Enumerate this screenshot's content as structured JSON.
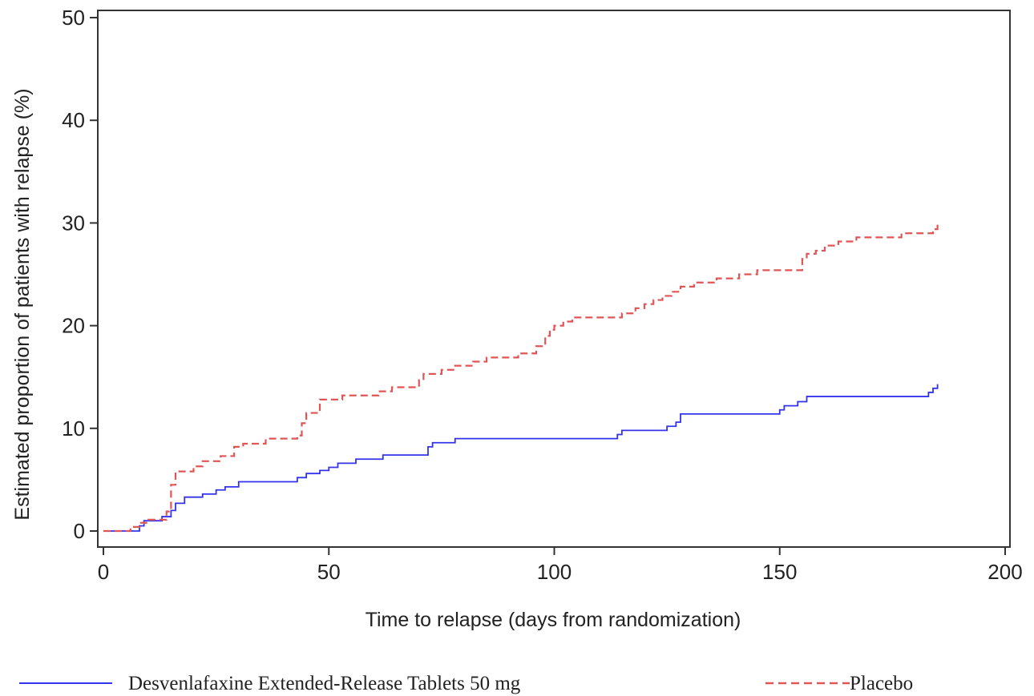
{
  "chart_data": {
    "type": "line",
    "title": "",
    "xlabel": "Time to relapse (days from randomization)",
    "ylabel": "Estimated proportion of patients with relapse (%)",
    "xlim": [
      0,
      200
    ],
    "ylim": [
      0,
      50
    ],
    "xticks": [
      0,
      50,
      100,
      150,
      200
    ],
    "yticks": [
      0,
      10,
      20,
      30,
      40,
      50
    ],
    "xtick_labels": [
      "0",
      "50",
      "100",
      "150",
      "200"
    ],
    "ytick_labels": [
      "0",
      "10",
      "20",
      "30",
      "40",
      "50"
    ],
    "grid": false,
    "step": true,
    "legend_position": "bottom",
    "series": [
      {
        "name": "Desvenlafaxine Extended-Release Tablets 50 mg",
        "color": "#3333ee",
        "dash": "solid",
        "x": [
          0,
          8,
          9,
          13,
          15,
          16,
          18,
          22,
          25,
          27,
          30,
          43,
          45,
          48,
          50,
          52,
          56,
          62,
          72,
          73,
          78,
          114,
          115,
          125,
          127,
          128,
          150,
          151,
          154,
          156,
          183,
          184,
          185
        ],
        "y": [
          0,
          0.5,
          1.0,
          1.4,
          2.0,
          2.7,
          3.3,
          3.6,
          4.0,
          4.3,
          4.8,
          5.2,
          5.6,
          5.9,
          6.2,
          6.6,
          7.0,
          7.4,
          8.2,
          8.6,
          9.0,
          9.4,
          9.8,
          10.2,
          10.6,
          11.4,
          11.8,
          12.2,
          12.6,
          13.1,
          13.5,
          13.9,
          14.3
        ]
      },
      {
        "name": "Placebo",
        "color": "#e05555",
        "dash": "dashed",
        "x": [
          0,
          6,
          8,
          10,
          14,
          15,
          16,
          20,
          22,
          26,
          29,
          31,
          36,
          43,
          44,
          45,
          48,
          53,
          61,
          64,
          70,
          71,
          75,
          78,
          82,
          85,
          92,
          96,
          98,
          99,
          100,
          102,
          104,
          107,
          115,
          118,
          120,
          122,
          124,
          126,
          128,
          131,
          136,
          141,
          145,
          155,
          156,
          158,
          160,
          163,
          167,
          175,
          177,
          181,
          184,
          185
        ],
        "y": [
          0,
          0.4,
          0.8,
          1.1,
          1.9,
          4.5,
          5.8,
          6.3,
          6.8,
          7.3,
          8.2,
          8.5,
          9.0,
          9.3,
          10.5,
          11.5,
          12.8,
          13.2,
          13.6,
          14.0,
          14.7,
          15.3,
          15.7,
          16.1,
          16.5,
          16.9,
          17.3,
          18.0,
          19.0,
          19.6,
          20.0,
          20.4,
          20.8,
          20.8,
          21.2,
          21.7,
          22.1,
          22.5,
          22.9,
          23.3,
          23.8,
          24.2,
          24.6,
          25.0,
          25.4,
          26.5,
          27.0,
          27.3,
          27.8,
          28.2,
          28.6,
          28.6,
          29.0,
          29.0,
          29.4,
          30.0
        ]
      }
    ]
  }
}
